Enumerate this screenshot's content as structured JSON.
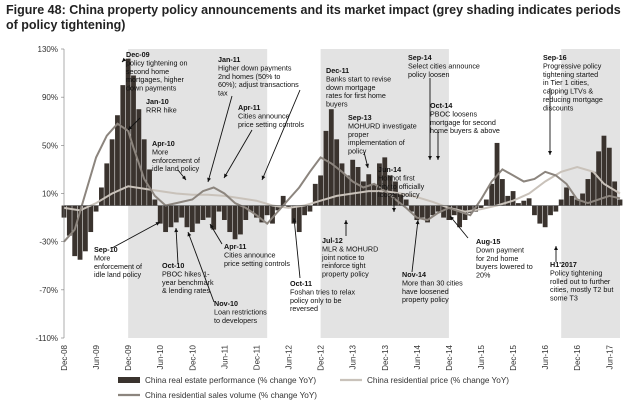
{
  "title": "Figure 48: China property policy announcements and its market impact (grey shading indicates periods of policy tightening)",
  "chart_data": {
    "type": "line",
    "title": "Figure 48: China property policy announcements and its market impact (grey shading indicates periods of policy tightening)",
    "xlabel": "",
    "ylabel": "",
    "ylim": [
      -110,
      130
    ],
    "y_ticks": [
      "130%",
      "90%",
      "50%",
      "10%",
      "-30%",
      "-70%",
      "-110%"
    ],
    "y_tick_values": [
      130,
      90,
      50,
      10,
      -30,
      -70,
      -110
    ],
    "x_range": [
      0,
      104
    ],
    "x_ticks": [
      "Dec-08",
      "Jun-09",
      "Dec-09",
      "Jun-10",
      "Dec-10",
      "Jun-11",
      "Dec-11",
      "Jun-12",
      "Dec-12",
      "Jun-13",
      "Dec-13",
      "Jun-14",
      "Dec-14",
      "Jun-15",
      "Dec-15",
      "Jun-16",
      "Dec-16",
      "Jun-17"
    ],
    "x_tick_months": [
      0,
      6,
      12,
      18,
      24,
      30,
      36,
      42,
      48,
      54,
      60,
      66,
      72,
      78,
      84,
      90,
      96,
      102
    ],
    "shaded_periods": [
      [
        12,
        38
      ],
      [
        48,
        72
      ],
      [
        93,
        104
      ]
    ],
    "series": [
      {
        "name": "China real estate performance (% change YoY)",
        "style": "bars",
        "color": "#3a332e",
        "points": [
          [
            0,
            -10
          ],
          [
            1,
            -25
          ],
          [
            2,
            -42
          ],
          [
            3,
            -45
          ],
          [
            4,
            -38
          ],
          [
            5,
            -22
          ],
          [
            6,
            -5
          ],
          [
            7,
            15
          ],
          [
            8,
            35
          ],
          [
            9,
            55
          ],
          [
            10,
            75
          ],
          [
            11,
            100
          ],
          [
            12,
            122
          ],
          [
            13,
            108
          ],
          [
            14,
            80
          ],
          [
            15,
            55
          ],
          [
            16,
            30
          ],
          [
            17,
            5
          ],
          [
            18,
            -15
          ],
          [
            19,
            -22
          ],
          [
            20,
            -18
          ],
          [
            21,
            -14
          ],
          [
            22,
            -10
          ],
          [
            23,
            -18
          ],
          [
            24,
            -22
          ],
          [
            25,
            -15
          ],
          [
            26,
            -12
          ],
          [
            27,
            -10
          ],
          [
            28,
            -20
          ],
          [
            29,
            -5
          ],
          [
            30,
            -12
          ],
          [
            31,
            -22
          ],
          [
            32,
            -28
          ],
          [
            33,
            -24
          ],
          [
            34,
            -12
          ],
          [
            35,
            -5
          ],
          [
            36,
            -10
          ],
          [
            37,
            -14
          ],
          [
            38,
            -8
          ],
          [
            39,
            -15
          ],
          [
            40,
            -4
          ],
          [
            41,
            8
          ],
          [
            42,
            -2
          ],
          [
            43,
            -15
          ],
          [
            44,
            -22
          ],
          [
            45,
            -8
          ],
          [
            46,
            -5
          ],
          [
            47,
            18
          ],
          [
            48,
            25
          ],
          [
            49,
            62
          ],
          [
            50,
            80
          ],
          [
            51,
            55
          ],
          [
            52,
            35
          ],
          [
            53,
            25
          ],
          [
            54,
            38
          ],
          [
            55,
            32
          ],
          [
            56,
            20
          ],
          [
            57,
            26
          ],
          [
            58,
            18
          ],
          [
            59,
            35
          ],
          [
            60,
            40
          ],
          [
            61,
            25
          ],
          [
            62,
            20
          ],
          [
            63,
            10
          ],
          [
            64,
            5
          ],
          [
            65,
            -5
          ],
          [
            66,
            -12
          ],
          [
            67,
            -10
          ],
          [
            68,
            -14
          ],
          [
            69,
            -8
          ],
          [
            70,
            -5
          ],
          [
            71,
            -10
          ],
          [
            72,
            -12
          ],
          [
            73,
            -8
          ],
          [
            74,
            -18
          ],
          [
            75,
            -12
          ],
          [
            76,
            -6
          ],
          [
            77,
            -5
          ],
          [
            78,
            -2
          ],
          [
            79,
            5
          ],
          [
            80,
            18
          ],
          [
            81,
            52
          ],
          [
            82,
            22
          ],
          [
            83,
            8
          ],
          [
            84,
            12
          ],
          [
            85,
            2
          ],
          [
            86,
            4
          ],
          [
            87,
            6
          ],
          [
            88,
            -8
          ],
          [
            89,
            -15
          ],
          [
            90,
            -18
          ],
          [
            91,
            -8
          ],
          [
            92,
            -5
          ],
          [
            93,
            5
          ],
          [
            94,
            15
          ],
          [
            95,
            8
          ],
          [
            96,
            5
          ],
          [
            97,
            10
          ],
          [
            98,
            22
          ],
          [
            99,
            28
          ],
          [
            100,
            45
          ],
          [
            101,
            58
          ],
          [
            102,
            48
          ],
          [
            103,
            20
          ],
          [
            104,
            5
          ]
        ]
      },
      {
        "name": "China residential price (% change YoY)",
        "style": "line",
        "color": "#c9c2ba",
        "points": [
          [
            0,
            -2
          ],
          [
            3,
            -4
          ],
          [
            6,
            2
          ],
          [
            9,
            10
          ],
          [
            12,
            16
          ],
          [
            15,
            14
          ],
          [
            18,
            12
          ],
          [
            21,
            10
          ],
          [
            24,
            9
          ],
          [
            27,
            9
          ],
          [
            30,
            8
          ],
          [
            33,
            6
          ],
          [
            36,
            4
          ],
          [
            39,
            0
          ],
          [
            42,
            -2
          ],
          [
            45,
            0
          ],
          [
            48,
            4
          ],
          [
            51,
            8
          ],
          [
            54,
            10
          ],
          [
            57,
            12
          ],
          [
            60,
            12
          ],
          [
            63,
            10
          ],
          [
            66,
            7
          ],
          [
            69,
            3
          ],
          [
            72,
            -2
          ],
          [
            75,
            -5
          ],
          [
            78,
            -3
          ],
          [
            81,
            0
          ],
          [
            84,
            4
          ],
          [
            87,
            10
          ],
          [
            90,
            20
          ],
          [
            93,
            28
          ],
          [
            96,
            32
          ],
          [
            99,
            28
          ],
          [
            101,
            18
          ],
          [
            104,
            10
          ]
        ]
      },
      {
        "name": "China residential sales volume (% change YoY)",
        "style": "line",
        "color": "#8c857e",
        "points": [
          [
            0,
            -30
          ],
          [
            2,
            -20
          ],
          [
            4,
            10
          ],
          [
            6,
            40
          ],
          [
            8,
            58
          ],
          [
            10,
            68
          ],
          [
            12,
            62
          ],
          [
            13,
            48
          ],
          [
            15,
            22
          ],
          [
            17,
            8
          ],
          [
            19,
            0
          ],
          [
            21,
            2
          ],
          [
            24,
            5
          ],
          [
            26,
            12
          ],
          [
            28,
            15
          ],
          [
            30,
            10
          ],
          [
            32,
            2
          ],
          [
            34,
            -2
          ],
          [
            36,
            -8
          ],
          [
            38,
            -15
          ],
          [
            40,
            -5
          ],
          [
            42,
            5
          ],
          [
            44,
            15
          ],
          [
            46,
            28
          ],
          [
            48,
            40
          ],
          [
            50,
            35
          ],
          [
            52,
            28
          ],
          [
            54,
            20
          ],
          [
            56,
            15
          ],
          [
            58,
            18
          ],
          [
            60,
            12
          ],
          [
            62,
            5
          ],
          [
            64,
            -2
          ],
          [
            66,
            -10
          ],
          [
            68,
            -12
          ],
          [
            70,
            -6
          ],
          [
            72,
            -2
          ],
          [
            74,
            -5
          ],
          [
            76,
            -8
          ],
          [
            78,
            5
          ],
          [
            80,
            20
          ],
          [
            82,
            30
          ],
          [
            84,
            25
          ],
          [
            86,
            20
          ],
          [
            88,
            22
          ],
          [
            90,
            28
          ],
          [
            92,
            25
          ],
          [
            94,
            18
          ],
          [
            96,
            5
          ],
          [
            98,
            2
          ],
          [
            100,
            5
          ],
          [
            102,
            8
          ],
          [
            104,
            6
          ]
        ]
      }
    ],
    "annotations": [
      {
        "label": "Dec-09",
        "lines": [
          "policy tightening on",
          "second home",
          "mortgages, higher",
          "down payments"
        ]
      },
      {
        "label": "Jan-10",
        "lines": [
          "RRR hike"
        ]
      },
      {
        "label": "Apr-10",
        "lines": [
          "More",
          "enforcement of",
          "idle land policy"
        ]
      },
      {
        "label": "Jan-11",
        "lines": [
          "Higher down payments",
          "2nd homes (50% to",
          "60%); adjust transactions",
          "tax"
        ]
      },
      {
        "label": "Apr-11",
        "lines": [
          "Cities announce",
          "price setting controls"
        ]
      },
      {
        "label": "Dec-11",
        "lines": [
          "Banks start to revise",
          "down mortgage",
          "rates for first home",
          "buyers"
        ]
      },
      {
        "label": "Sep-13",
        "lines": [
          "MOHURD investigate",
          "proper",
          "implementation of",
          "policy"
        ]
      },
      {
        "label": "Sep-14",
        "lines": [
          "Select cities announce",
          "policy loosen"
        ]
      },
      {
        "label": "Oct-14",
        "lines": [
          "PBOC loosens",
          "mortgage for second",
          "home buyers & above"
        ]
      },
      {
        "label": "Jun-14",
        "lines": [
          "Hohhot first",
          "city to officially",
          "loosen policy"
        ]
      },
      {
        "label": "Sep-16",
        "lines": [
          "Progressive policy",
          "tightening started",
          "in Tier 1 cities,",
          "capping LTVs &",
          "reducing mortgage",
          "discounts"
        ]
      },
      {
        "label": "Sep-10",
        "lines": [
          "More",
          "enforcement of",
          "idle land policy"
        ]
      },
      {
        "label": "Oct-10",
        "lines": [
          "PBOC hikes 1-",
          "year benchmark",
          "& lending rates"
        ]
      },
      {
        "label": "Nov-10",
        "lines": [
          "Loan restrictions",
          "to developers"
        ]
      },
      {
        "label": "Apr-11",
        "lines": [
          "Cities announce",
          "price setting controls"
        ]
      },
      {
        "label": "Oct-11",
        "lines": [
          "Foshan tries to relax",
          "policy only to be",
          "reversed"
        ]
      },
      {
        "label": "Jul-12",
        "lines": [
          "MLR & MOHURD",
          "joint notice to",
          "reinforce tight",
          "property policy"
        ]
      },
      {
        "label": "Nov-14",
        "lines": [
          "More than 30 cities",
          "have loosened",
          "property policy"
        ]
      },
      {
        "label": "Aug-15",
        "lines": [
          "Down payment",
          "for 2nd home",
          "buyers lowered to",
          "20%"
        ]
      },
      {
        "label": "H1'2017",
        "lines": [
          "Policy tightening",
          "rolled out to further",
          "cities, mostly T2 but",
          "some T3"
        ]
      }
    ]
  }
}
